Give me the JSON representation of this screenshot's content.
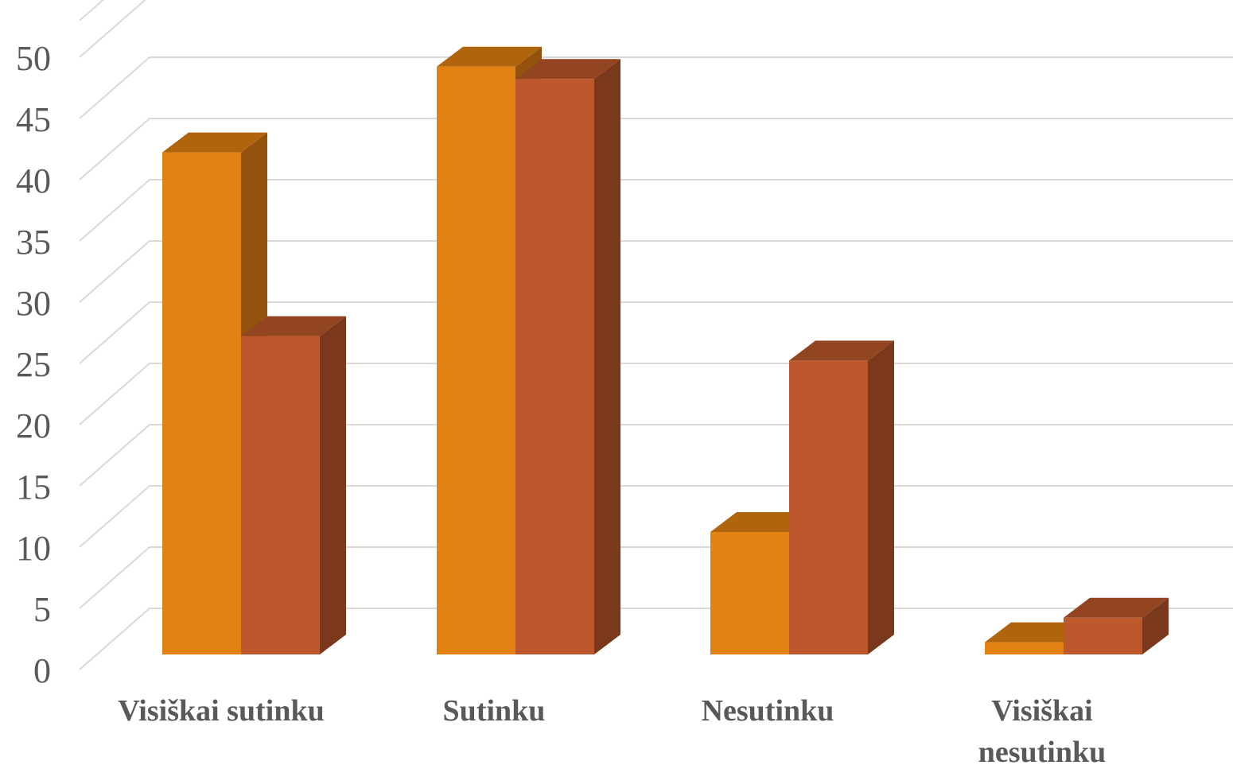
{
  "chart_data": {
    "type": "bar",
    "categories": [
      "Visiškai sutinku",
      "Sutinku",
      "Nesutinku",
      "Visiškai nesutinku"
    ],
    "series": [
      {
        "values": [
          41,
          48,
          10,
          1
        ],
        "color": "#E38012"
      },
      {
        "values": [
          26,
          47,
          24,
          3
        ],
        "color": "#BC582C"
      }
    ],
    "y_ticks": [
      "0",
      "5",
      "10",
      "15",
      "20",
      "25",
      "30",
      "35",
      "40",
      "45",
      "50"
    ],
    "ylim": [
      0,
      53
    ],
    "grid": true,
    "legend": "none",
    "style": "3d-clustered-column"
  }
}
